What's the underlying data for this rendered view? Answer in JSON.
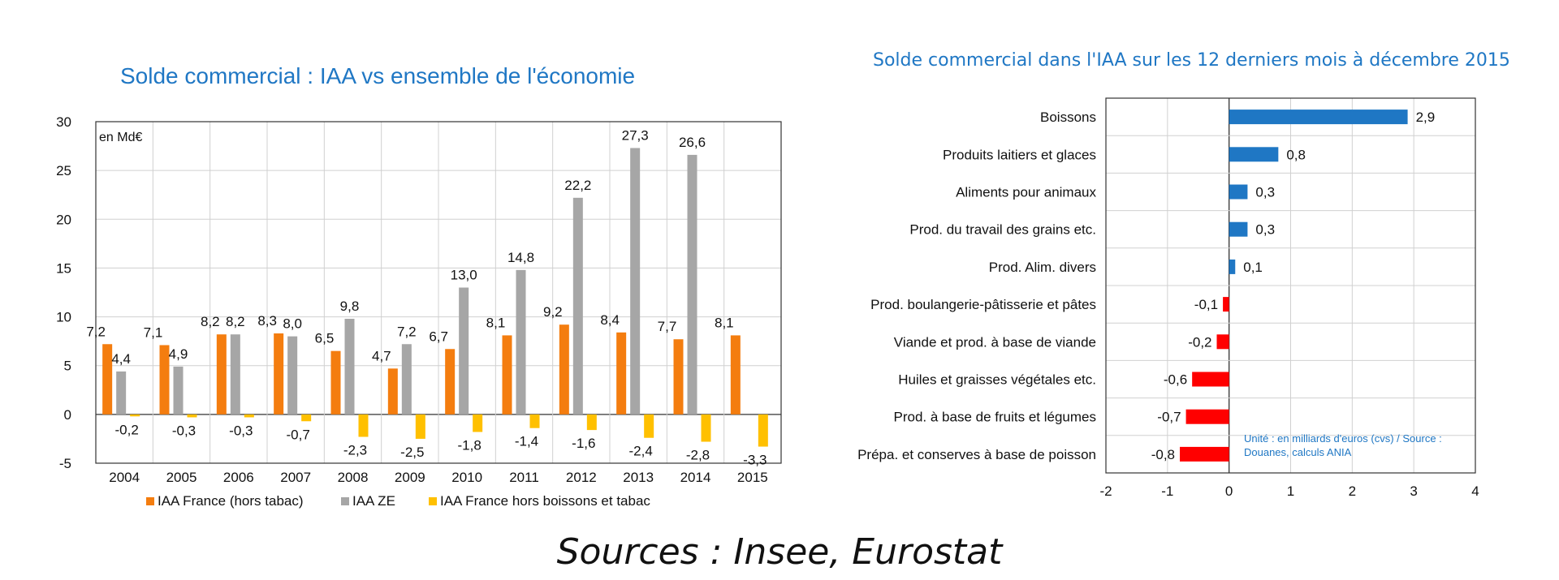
{
  "chart_data": [
    {
      "type": "bar",
      "title": "Solde commercial : IAA vs ensemble de l'économie",
      "unit_label": "en Md€",
      "categories": [
        "2004",
        "2005",
        "2006",
        "2007",
        "2008",
        "2009",
        "2010",
        "2011",
        "2012",
        "2013",
        "2014",
        "2015"
      ],
      "series": [
        {
          "name": "IAA France (hors tabac)",
          "color": "#f47d0f",
          "values": [
            7.2,
            7.1,
            8.2,
            8.3,
            6.5,
            4.7,
            6.7,
            8.1,
            9.2,
            8.4,
            7.7,
            8.1
          ],
          "labels": [
            "7,2",
            "7,1",
            "8,2",
            "8,3",
            "6,5",
            "4,7",
            "6,7",
            "8,1",
            "9,2",
            "8,4",
            "7,7",
            "8,1"
          ]
        },
        {
          "name": "IAA ZE",
          "color": "#a6a6a6",
          "values": [
            4.4,
            4.9,
            8.2,
            8.0,
            9.8,
            7.2,
            13.0,
            14.8,
            22.2,
            27.3,
            26.6,
            null
          ],
          "labels": [
            "4,4",
            "4,9",
            "8,2",
            "8,0",
            "9,8",
            "7,2",
            "13,0",
            "14,8",
            "22,2",
            "27,3",
            "26,6",
            ""
          ]
        },
        {
          "name": "IAA France hors boissons et tabac",
          "color": "#ffc000",
          "values": [
            -0.2,
            -0.3,
            -0.3,
            -0.7,
            -2.3,
            -2.5,
            -1.8,
            -1.4,
            -1.6,
            -2.4,
            -2.8,
            -3.3
          ],
          "labels": [
            "-0,2",
            "-0,3",
            "-0,3",
            "-0,7",
            "-2,3",
            "-2,5",
            "-1,8",
            "-1,4",
            "-1,6",
            "-2,4",
            "-2,8",
            "-3,3"
          ]
        }
      ],
      "ylim": [
        -5,
        30
      ],
      "yticks": [
        "-5",
        "0",
        "5",
        "10",
        "15",
        "20",
        "25",
        "30"
      ],
      "grid": true,
      "legend": "bottom"
    },
    {
      "type": "bar",
      "orientation": "horizontal",
      "title": "Solde commercial dans l'IAA sur les 12 derniers mois à décembre 2015",
      "categories": [
        "Boissons",
        "Produits laitiers et glaces",
        "Aliments pour animaux",
        "Prod. du travail des grains etc.",
        "Prod. Alim. divers",
        "Prod. boulangerie-pâtisserie et pâtes",
        "Viande et prod. à base de viande",
        "Huiles et graisses végétales etc.",
        "Prod. à base de fruits et légumes",
        "Prépa. et conserves à base de poisson"
      ],
      "values": [
        2.9,
        0.8,
        0.3,
        0.3,
        0.1,
        -0.1,
        -0.2,
        -0.6,
        -0.7,
        -0.8
      ],
      "labels": [
        "2,9",
        "0,8",
        "0,3",
        "0,3",
        "0,1",
        "-0,1",
        "-0,2",
        "-0,6",
        "-0,7",
        "-0,8"
      ],
      "xlim": [
        -2,
        4
      ],
      "xticks": [
        "-2",
        "-1",
        "0",
        "1",
        "2",
        "3",
        "4"
      ],
      "positive_color": "#1f77c4",
      "negative_color": "#ff0000",
      "note": "Unité : en milliards d'euros (cvs) / Source : Douanes, calculs ANIA",
      "grid": true
    }
  ],
  "footer": {
    "sources": "Sources : Insee, Eurostat"
  }
}
